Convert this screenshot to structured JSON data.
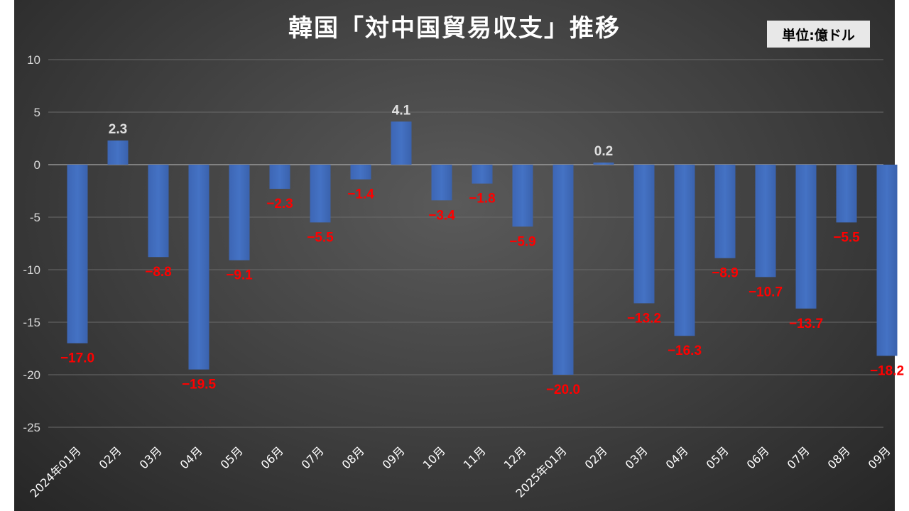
{
  "title": "韓国「対中国貿易収支」推移",
  "unit_label": "単位:億ドル",
  "colors": {
    "bar": "#4472c4",
    "positive_label": "#e0e0e0",
    "negative_label": "#ff0000",
    "grid": "#6a6a6a"
  },
  "chart_data": {
    "type": "bar",
    "title": "韓国「対中国貿易収支」推移",
    "unit": "単位:億ドル",
    "categories": [
      "2024年01月",
      "02月",
      "03月",
      "04月",
      "05月",
      "06月",
      "07月",
      "08月",
      "09月",
      "10月",
      "11月",
      "12月",
      "2025年01月",
      "02月",
      "03月",
      "04月",
      "05月",
      "06月",
      "07月",
      "08月",
      "09月"
    ],
    "values": [
      -17.0,
      2.3,
      -8.8,
      -19.5,
      -9.1,
      -2.3,
      -5.5,
      -1.4,
      4.1,
      -3.4,
      -1.8,
      -5.9,
      -20.0,
      0.2,
      -13.2,
      -16.3,
      -8.9,
      -10.7,
      -13.7,
      -5.5,
      -18.2
    ],
    "labels": [
      "−17.0",
      "2.3",
      "−8.8",
      "−19.5",
      "−9.1",
      "−2.3",
      "−5.5",
      "−1.4",
      "4.1",
      "−3.4",
      "−1.8",
      "−5.9",
      "−20.0",
      "0.2",
      "−13.2",
      "−16.3",
      "−8.9",
      "−10.7",
      "−13.7",
      "−5.5",
      "−18.2"
    ],
    "ylim": [
      -25,
      10
    ],
    "yticks": [
      10,
      5,
      0,
      -5,
      -10,
      -15,
      -20,
      -25
    ],
    "grid": true,
    "legend": "none"
  }
}
